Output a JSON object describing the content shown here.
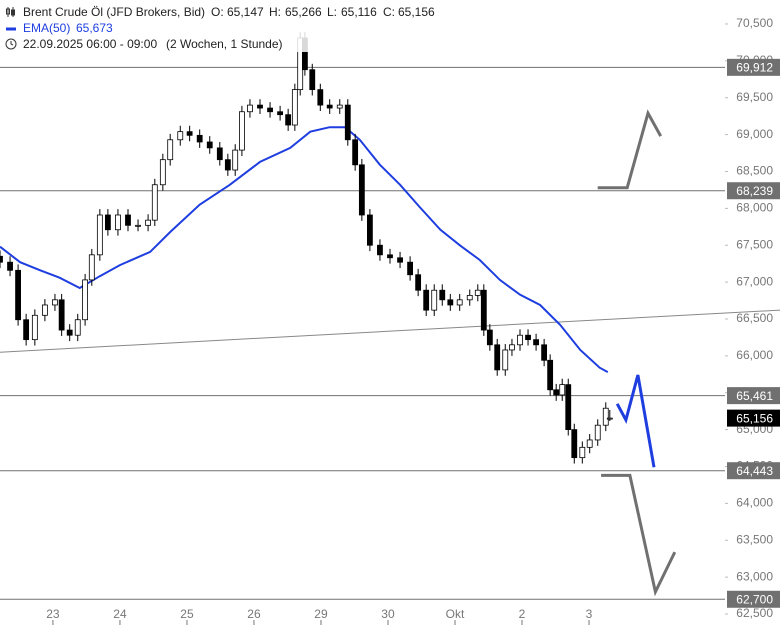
{
  "header": {
    "symbol": "Brent Crude Öl (JFD Brokers, Bid)",
    "ohlc": [
      {
        "label": "O:",
        "value": "65,147"
      },
      {
        "label": "H:",
        "value": "65,266"
      },
      {
        "label": "L:",
        "value": "65,116"
      },
      {
        "label": "C:",
        "value": "65,156"
      }
    ],
    "ema_label": "EMA(50)",
    "ema_value": "65,673",
    "date_range": "22.09.2025 06:00 - 09:00",
    "period": "(2 Wochen, 1 Stunde)"
  },
  "chart_data": {
    "type": "candlestick",
    "up_color": "#ffffff",
    "down_color": "#000000",
    "x": [
      -0.79,
      -0.64,
      -0.52,
      -0.4,
      -0.27,
      -0.12,
      0.03,
      0.13,
      0.25,
      0.37,
      0.48,
      0.58,
      0.7,
      0.82,
      0.97,
      1.12,
      1.27,
      1.42,
      1.52,
      1.64,
      1.75,
      1.9,
      2.04,
      2.19,
      2.34,
      2.49,
      2.61,
      2.72,
      2.82,
      2.94,
      3.09,
      3.24,
      3.39,
      3.51,
      3.61,
      3.69,
      3.76,
      3.87,
      3.99,
      4.13,
      4.28,
      4.4,
      4.51,
      4.61,
      4.73,
      4.88,
      5.03,
      5.18,
      5.33,
      5.45,
      5.57,
      5.69,
      5.81,
      5.93,
      6.07,
      6.22,
      6.34,
      6.43,
      6.52,
      6.63,
      6.75,
      6.85,
      6.97,
      7.09,
      7.21,
      7.33,
      7.42,
      7.51,
      7.6,
      7.69,
      7.78,
      7.9,
      8.01,
      8.13,
      8.25,
      8.31
    ],
    "open": [
      67.35,
      67.27,
      67.16,
      66.49,
      66.22,
      66.55,
      66.69,
      66.76,
      66.35,
      66.28,
      66.49,
      67.03,
      67.37,
      67.91,
      67.71,
      67.91,
      67.77,
      67.77,
      67.84,
      68.32,
      68.66,
      68.93,
      69.04,
      68.99,
      68.9,
      68.82,
      68.66,
      68.52,
      68.79,
      69.31,
      69.4,
      69.36,
      69.31,
      69.27,
      69.13,
      69.61,
      70.31,
      69.88,
      69.61,
      69.4,
      69.36,
      69.4,
      68.93,
      68.59,
      67.91,
      67.5,
      67.37,
      67.33,
      67.27,
      67.1,
      66.89,
      66.62,
      66.89,
      66.76,
      66.69,
      66.76,
      66.82,
      66.89,
      66.35,
      66.15,
      65.81,
      66.08,
      66.15,
      66.28,
      66.22,
      66.15,
      65.94,
      65.54,
      65.47,
      65.61,
      65.0,
      64.62,
      64.76,
      64.86,
      65.06,
      65.147
    ],
    "high": [
      67.43,
      67.35,
      67.24,
      66.57,
      66.63,
      66.77,
      66.84,
      66.84,
      66.43,
      66.57,
      67.11,
      67.45,
      67.99,
      67.99,
      67.99,
      67.99,
      67.85,
      67.92,
      68.4,
      68.74,
      69.01,
      69.12,
      69.12,
      69.07,
      68.98,
      68.9,
      68.74,
      68.87,
      69.39,
      69.48,
      69.48,
      69.44,
      69.39,
      69.35,
      69.69,
      70.39,
      70.39,
      69.96,
      69.69,
      69.48,
      69.48,
      69.48,
      69.01,
      68.67,
      67.99,
      67.58,
      67.45,
      67.41,
      67.35,
      67.18,
      66.97,
      66.97,
      66.97,
      66.84,
      66.84,
      66.9,
      66.97,
      66.97,
      66.43,
      66.23,
      66.16,
      66.23,
      66.36,
      66.36,
      66.3,
      66.23,
      66.02,
      65.62,
      65.69,
      65.69,
      65.08,
      64.84,
      64.94,
      65.14,
      65.37,
      65.266
    ],
    "low": [
      67.19,
      67.08,
      66.41,
      66.14,
      66.14,
      66.47,
      66.61,
      66.27,
      66.2,
      66.2,
      66.41,
      66.95,
      67.29,
      67.63,
      67.63,
      67.69,
      67.69,
      67.69,
      67.76,
      68.24,
      68.58,
      68.85,
      68.91,
      68.82,
      68.74,
      68.58,
      68.44,
      68.44,
      68.71,
      69.23,
      69.28,
      69.23,
      69.19,
      69.05,
      69.05,
      69.53,
      69.8,
      69.53,
      69.32,
      69.28,
      69.28,
      68.85,
      68.51,
      67.83,
      67.42,
      67.29,
      67.25,
      67.19,
      67.02,
      66.81,
      66.54,
      66.54,
      66.68,
      66.61,
      66.61,
      66.68,
      66.74,
      66.27,
      66.07,
      65.73,
      65.73,
      66.0,
      66.07,
      66.14,
      66.07,
      65.86,
      65.46,
      65.39,
      65.39,
      64.92,
      64.54,
      64.54,
      64.68,
      64.78,
      64.98,
      65.116
    ],
    "close": [
      67.27,
      67.16,
      66.49,
      66.22,
      66.55,
      66.69,
      66.76,
      66.35,
      66.28,
      66.49,
      67.03,
      67.37,
      67.91,
      67.71,
      67.91,
      67.77,
      67.77,
      67.84,
      68.32,
      68.66,
      68.93,
      69.04,
      68.99,
      68.9,
      68.82,
      68.66,
      68.52,
      68.79,
      69.31,
      69.4,
      69.36,
      69.31,
      69.27,
      69.13,
      69.61,
      70.31,
      69.88,
      69.61,
      69.4,
      69.36,
      69.4,
      68.93,
      68.59,
      67.91,
      67.5,
      67.37,
      67.33,
      67.27,
      67.1,
      66.89,
      66.62,
      66.89,
      66.76,
      66.69,
      66.76,
      66.82,
      66.89,
      66.35,
      66.15,
      65.81,
      66.08,
      66.15,
      66.28,
      66.22,
      66.15,
      65.94,
      65.54,
      65.47,
      65.61,
      65.0,
      64.62,
      64.76,
      64.86,
      65.06,
      65.29,
      65.156
    ],
    "ema": {
      "color": "#1f3ee0",
      "x": [
        -0.79,
        -0.49,
        -0.19,
        0.1,
        0.4,
        0.7,
        1.0,
        1.45,
        1.75,
        2.19,
        2.64,
        3.09,
        3.54,
        3.84,
        4.13,
        4.36,
        4.58,
        4.88,
        5.18,
        5.48,
        5.78,
        6.07,
        6.37,
        6.67,
        6.97,
        7.27,
        7.57,
        7.87,
        8.16,
        8.28
      ],
      "values": [
        67.48,
        67.27,
        67.16,
        67.06,
        66.92,
        67.08,
        67.23,
        67.41,
        67.68,
        68.05,
        68.32,
        68.63,
        68.82,
        69.04,
        69.1,
        69.1,
        68.93,
        68.59,
        68.32,
        68.01,
        67.71,
        67.5,
        67.3,
        67.03,
        66.83,
        66.69,
        66.42,
        66.08,
        65.84,
        65.78
      ]
    },
    "levels": [
      {
        "value": 69.912,
        "label": "69,912"
      },
      {
        "value": 68.239,
        "label": "68,239"
      },
      {
        "value": 65.461,
        "label": "65,461"
      },
      {
        "value": 64.443,
        "label": "64,443"
      },
      {
        "value": 62.7,
        "label": "62,700"
      }
    ],
    "level_color": "#707070",
    "current": {
      "value": 65.156,
      "label": "65,156"
    },
    "trendline": {
      "color": "#888888",
      "x": [
        -0.79,
        10.85
      ],
      "values": [
        66.05,
        66.62
      ]
    },
    "projections": [
      {
        "color": "#707070",
        "x": [
          8.13,
          8.57,
          8.88,
          9.07
        ],
        "values": [
          68.28,
          68.28,
          69.29,
          68.98
        ]
      },
      {
        "color": "#1f3ee0",
        "x": [
          8.42,
          8.55,
          8.73,
          8.97
        ],
        "values": [
          65.35,
          65.13,
          65.74,
          64.49
        ]
      },
      {
        "color": "#707070",
        "x": [
          8.18,
          8.61,
          8.99,
          9.28
        ],
        "values": [
          64.38,
          64.38,
          62.8,
          63.34
        ]
      }
    ],
    "xlim": [
      -0.79,
      10.85
    ],
    "ylim": [
      62.351,
      70.825
    ],
    "xticks": [
      {
        "value": 0,
        "label": "23"
      },
      {
        "value": 1,
        "label": "24"
      },
      {
        "value": 2,
        "label": "25"
      },
      {
        "value": 3,
        "label": "26"
      },
      {
        "value": 4,
        "label": "29"
      },
      {
        "value": 5,
        "label": "30"
      },
      {
        "value": 6,
        "label": "Okt"
      },
      {
        "value": 7,
        "label": "2"
      },
      {
        "value": 8,
        "label": "3"
      }
    ],
    "yticks": [
      {
        "value": 62.5,
        "label": "62,500"
      },
      {
        "value": 63,
        "label": "63,000"
      },
      {
        "value": 63.5,
        "label": "63,500"
      },
      {
        "value": 64,
        "label": "64,000"
      },
      {
        "value": 64.5,
        "label": "64,500"
      },
      {
        "value": 65,
        "label": "65,000"
      },
      {
        "value": 65.5,
        "label": "65,500"
      },
      {
        "value": 66,
        "label": "66,000"
      },
      {
        "value": 66.5,
        "label": "66,500"
      },
      {
        "value": 67,
        "label": "67,000"
      },
      {
        "value": 67.5,
        "label": "67,500"
      },
      {
        "value": 68,
        "label": "68,000"
      },
      {
        "value": 68.5,
        "label": "68,500"
      },
      {
        "value": 69,
        "label": "69,000"
      },
      {
        "value": 69.5,
        "label": "69,500"
      },
      {
        "value": 70,
        "label": "70,000"
      },
      {
        "value": 70.5,
        "label": "70,500"
      }
    ]
  }
}
